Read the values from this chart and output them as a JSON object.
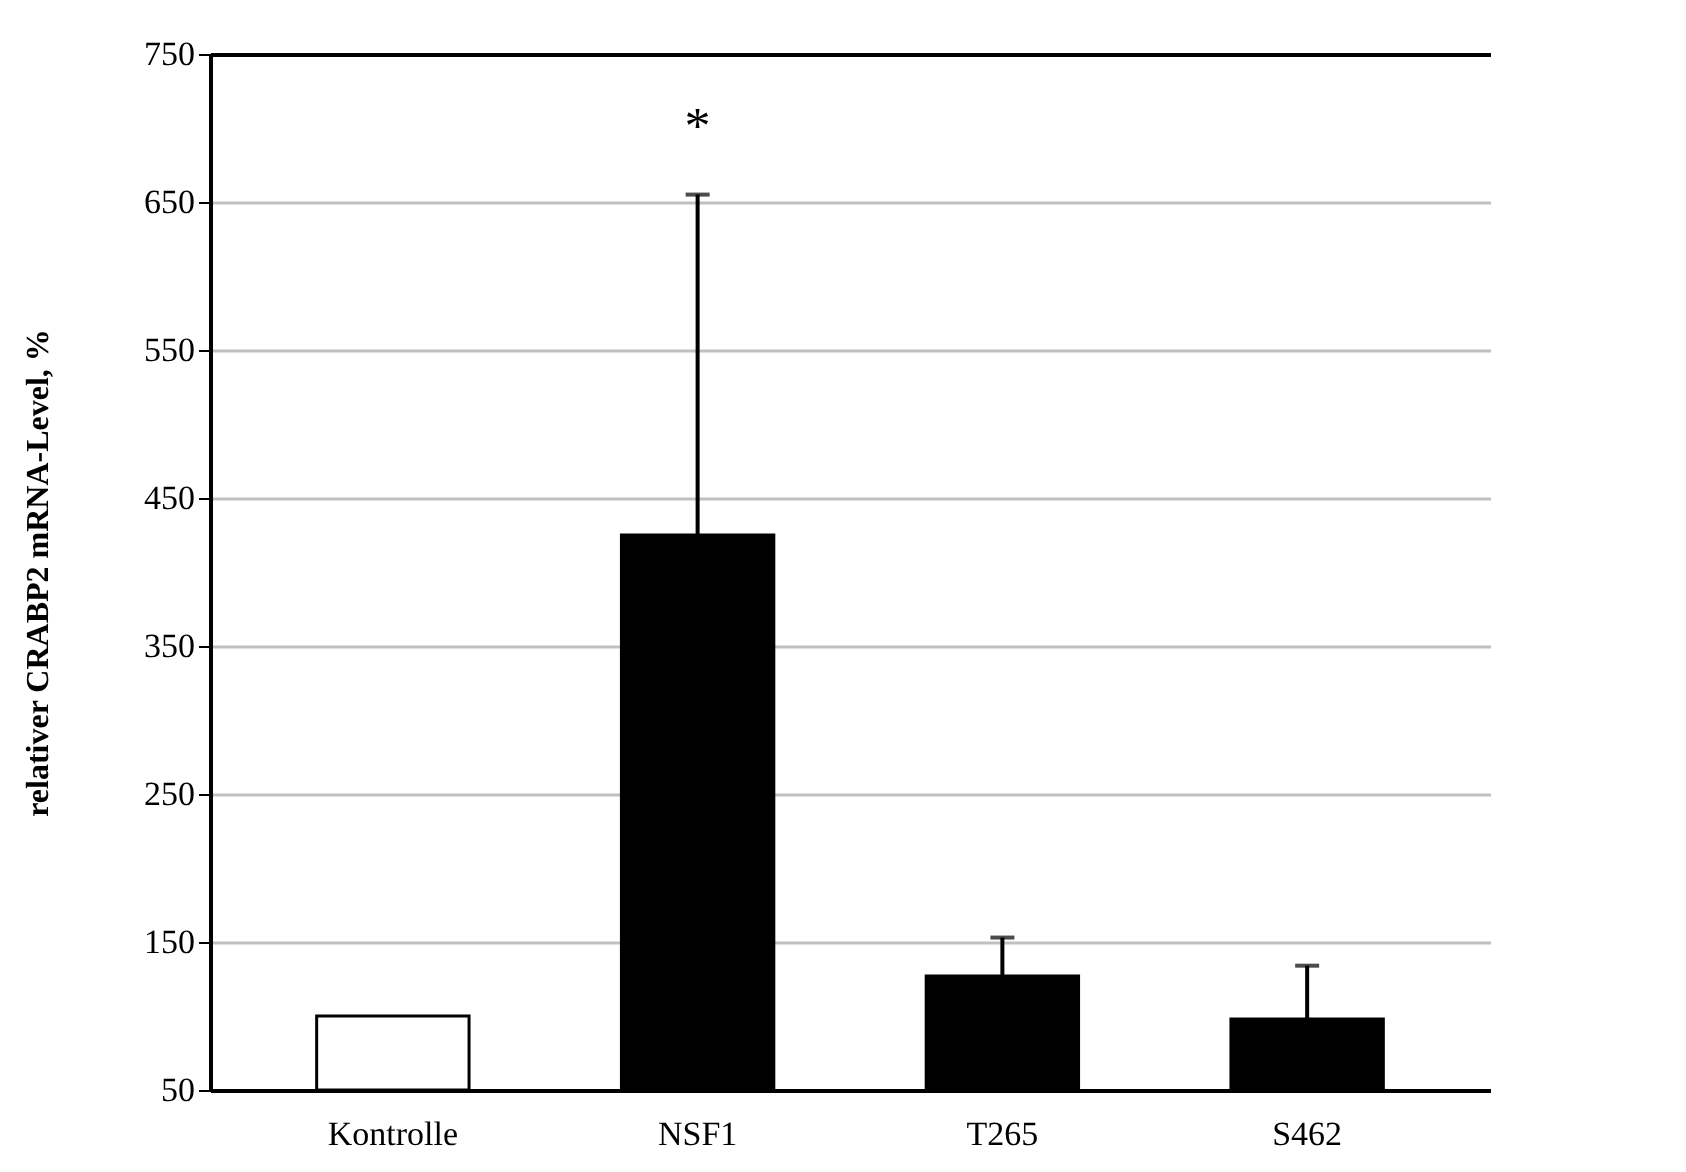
{
  "chart_data": {
    "type": "bar",
    "ylabel": "relativer CRABP2 mRNA-Level, %",
    "categories": [
      "Kontrolle",
      "NSF1",
      "T265",
      "S462"
    ],
    "values": [
      100,
      425,
      127,
      98
    ],
    "colors": [
      "#ffffff",
      "#000000",
      "#000000",
      "#000000"
    ],
    "errors": [
      null,
      [
        425,
        655
      ],
      [
        127,
        153
      ],
      [
        98,
        134
      ]
    ],
    "ylim": [
      50,
      750
    ],
    "yticks": [
      50,
      150,
      250,
      350,
      450,
      550,
      650,
      750
    ],
    "grid": "y",
    "annotations": [
      "*"
    ]
  }
}
